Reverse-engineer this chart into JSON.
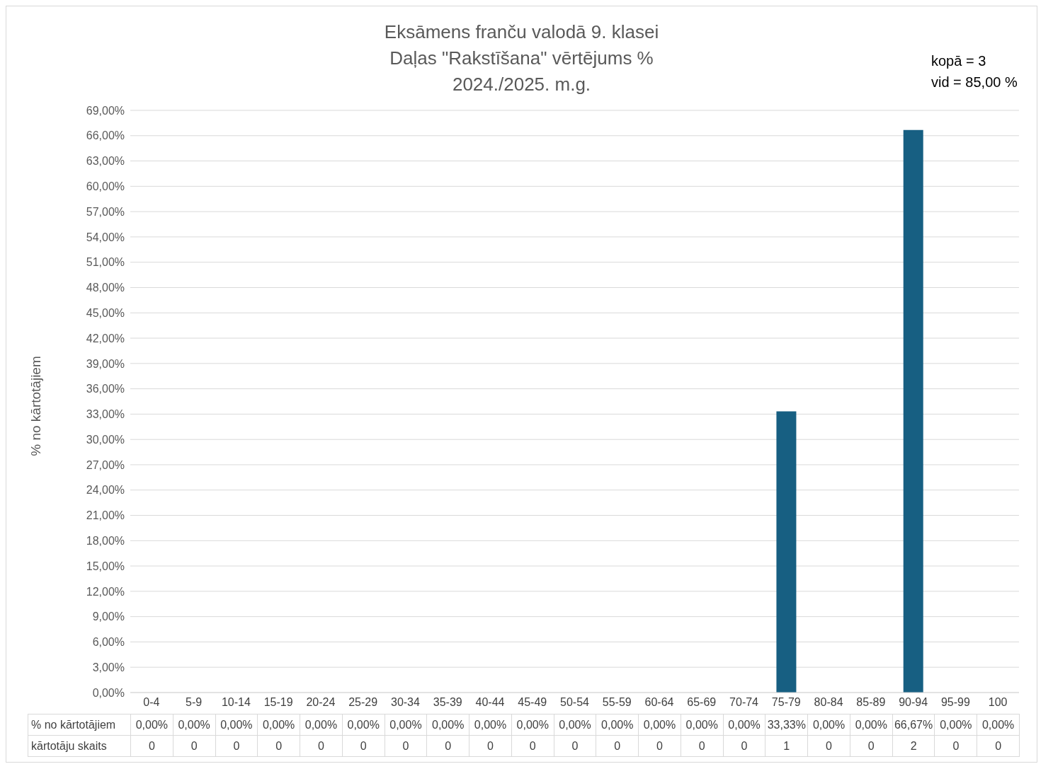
{
  "chart_data": {
    "type": "bar",
    "title": "Eksāmens franču valodā 9. klasei",
    "subtitle": "Daļas \"Rakstīšana\" vērtējums %\n2024./2025. m.g.",
    "ylabel": "% no kārtotājiem",
    "categories": [
      "0-4",
      "5-9",
      "10-14",
      "15-19",
      "20-24",
      "25-29",
      "30-34",
      "35-39",
      "40-44",
      "45-49",
      "50-54",
      "55-59",
      "60-64",
      "65-69",
      "70-74",
      "75-79",
      "80-84",
      "85-89",
      "90-94",
      "95-99",
      "100"
    ],
    "series": [
      {
        "name": "% no kārtotājiem",
        "color": "#175f82",
        "values": [
          0,
          0,
          0,
          0,
          0,
          0,
          0,
          0,
          0,
          0,
          0,
          0,
          0,
          0,
          0,
          33.33,
          0,
          0,
          66.67,
          0,
          0
        ],
        "value_labels": [
          "0,00%",
          "0,00%",
          "0,00%",
          "0,00%",
          "0,00%",
          "0,00%",
          "0,00%",
          "0,00%",
          "0,00%",
          "0,00%",
          "0,00%",
          "0,00%",
          "0,00%",
          "0,00%",
          "0,00%",
          "33,33%",
          "0,00%",
          "0,00%",
          "66,67%",
          "0,00%",
          "0,00%"
        ]
      }
    ],
    "ylim": [
      0,
      69
    ],
    "yticks": [
      {
        "value": 0,
        "label": "0,00%"
      },
      {
        "value": 3,
        "label": "3,00%"
      },
      {
        "value": 6,
        "label": "6,00%"
      },
      {
        "value": 9,
        "label": "9,00%"
      },
      {
        "value": 12,
        "label": "12,00%"
      },
      {
        "value": 15,
        "label": "15,00%"
      },
      {
        "value": 18,
        "label": "18,00%"
      },
      {
        "value": 21,
        "label": "21,00%"
      },
      {
        "value": 24,
        "label": "24,00%"
      },
      {
        "value": 27,
        "label": "27,00%"
      },
      {
        "value": 30,
        "label": "30,00%"
      },
      {
        "value": 33,
        "label": "33,00%"
      },
      {
        "value": 36,
        "label": "36,00%"
      },
      {
        "value": 39,
        "label": "39,00%"
      },
      {
        "value": 42,
        "label": "42,00%"
      },
      {
        "value": 45,
        "label": "45,00%"
      },
      {
        "value": 48,
        "label": "48,00%"
      },
      {
        "value": 51,
        "label": "51,00%"
      },
      {
        "value": 54,
        "label": "54,00%"
      },
      {
        "value": 57,
        "label": "57,00%"
      },
      {
        "value": 60,
        "label": "60,00%"
      },
      {
        "value": 63,
        "label": "63,00%"
      },
      {
        "value": 66,
        "label": "66,00%"
      },
      {
        "value": 69,
        "label": "69,00%"
      }
    ],
    "grid": "y",
    "annotations": [
      "kopā = 3\nvid = 85,00 %",
      "kārtotāju skaits",
      "0",
      "0",
      "0",
      "0",
      "0",
      "0",
      "0",
      "0",
      "0",
      "0",
      "0",
      "0",
      "0",
      "0",
      "0",
      "1",
      "0",
      "0",
      "2",
      "0",
      "0"
    ]
  }
}
